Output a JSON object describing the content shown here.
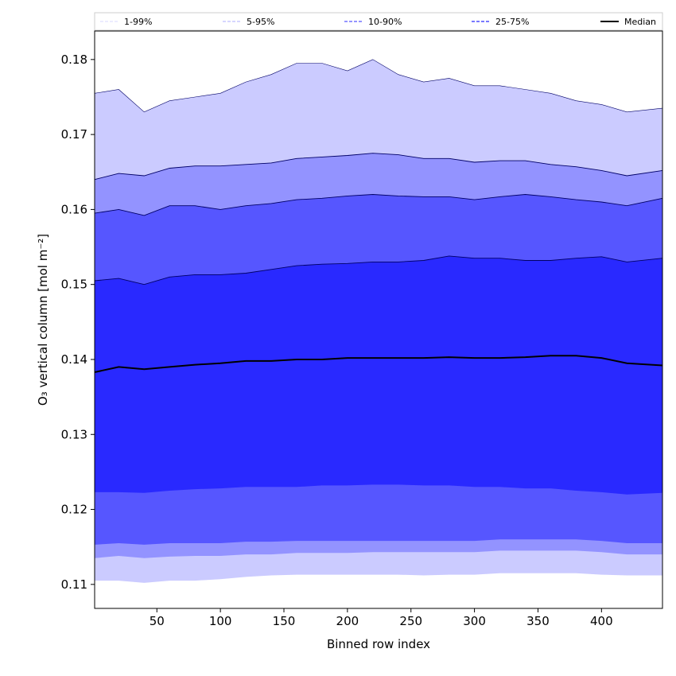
{
  "chart_data": {
    "type": "area",
    "xlabel": "Binned row index",
    "ylabel": "O₃ vertical column [mol m⁻²]",
    "xlim": [
      1,
      448
    ],
    "ylim": [
      0.1068,
      0.1838
    ],
    "xticks": [
      50,
      100,
      150,
      200,
      250,
      300,
      350,
      400
    ],
    "yticks": [
      0.11,
      0.12,
      0.13,
      0.14,
      0.15,
      0.16,
      0.17,
      0.18
    ],
    "ytick_labels": [
      "0.11",
      "0.12",
      "0.13",
      "0.14",
      "0.15",
      "0.16",
      "0.17",
      "0.18"
    ],
    "grid": false,
    "legend_position": "top",
    "x": [
      1,
      20,
      40,
      60,
      80,
      100,
      120,
      140,
      160,
      180,
      200,
      220,
      240,
      260,
      280,
      300,
      320,
      340,
      360,
      380,
      400,
      420,
      448
    ],
    "bands": [
      {
        "name": "1-99%",
        "color": "#cbcbff",
        "upper": [
          0.1755,
          0.176,
          0.173,
          0.1745,
          0.175,
          0.1755,
          0.177,
          0.178,
          0.1795,
          0.1795,
          0.1785,
          0.18,
          0.178,
          0.177,
          0.1775,
          0.1765,
          0.1765,
          0.176,
          0.1755,
          0.1745,
          0.174,
          0.173,
          0.1735
        ],
        "lower": [
          0.1105,
          0.1105,
          0.1102,
          0.1105,
          0.1105,
          0.1107,
          0.111,
          0.1112,
          0.1113,
          0.1113,
          0.1113,
          0.1113,
          0.1113,
          0.1112,
          0.1113,
          0.1113,
          0.1115,
          0.1115,
          0.1115,
          0.1115,
          0.1113,
          0.1112,
          0.1112
        ]
      },
      {
        "name": "5-95%",
        "color": "#9393ff",
        "upper": [
          0.164,
          0.1648,
          0.1645,
          0.1655,
          0.1658,
          0.1658,
          0.166,
          0.1662,
          0.1668,
          0.167,
          0.1672,
          0.1675,
          0.1673,
          0.1668,
          0.1668,
          0.1663,
          0.1665,
          0.1665,
          0.166,
          0.1657,
          0.1652,
          0.1645,
          0.1652
        ],
        "lower": [
          0.1135,
          0.1138,
          0.1135,
          0.1137,
          0.1138,
          0.1138,
          0.114,
          0.114,
          0.1142,
          0.1142,
          0.1142,
          0.1143,
          0.1143,
          0.1143,
          0.1143,
          0.1143,
          0.1145,
          0.1145,
          0.1145,
          0.1145,
          0.1143,
          0.114,
          0.114
        ]
      },
      {
        "name": "10-90%",
        "color": "#5656ff",
        "upper": [
          0.1595,
          0.16,
          0.1592,
          0.1605,
          0.1605,
          0.16,
          0.1605,
          0.1608,
          0.1613,
          0.1615,
          0.1618,
          0.162,
          0.1618,
          0.1617,
          0.1617,
          0.1613,
          0.1617,
          0.162,
          0.1617,
          0.1613,
          0.161,
          0.1605,
          0.1615
        ],
        "lower": [
          0.1153,
          0.1155,
          0.1153,
          0.1155,
          0.1155,
          0.1155,
          0.1157,
          0.1157,
          0.1158,
          0.1158,
          0.1158,
          0.1158,
          0.1158,
          0.1158,
          0.1158,
          0.1158,
          0.116,
          0.116,
          0.116,
          0.116,
          0.1158,
          0.1155,
          0.1155
        ]
      },
      {
        "name": "25-75%",
        "color": "#2929ff",
        "upper": [
          0.1505,
          0.1508,
          0.15,
          0.151,
          0.1513,
          0.1513,
          0.1515,
          0.152,
          0.1525,
          0.1527,
          0.1528,
          0.153,
          0.153,
          0.1532,
          0.1538,
          0.1535,
          0.1535,
          0.1532,
          0.1532,
          0.1535,
          0.1537,
          0.153,
          0.1535
        ],
        "lower": [
          0.1223,
          0.1223,
          0.1222,
          0.1225,
          0.1227,
          0.1228,
          0.123,
          0.123,
          0.123,
          0.1232,
          0.1232,
          0.1233,
          0.1233,
          0.1232,
          0.1232,
          0.123,
          0.123,
          0.1228,
          0.1228,
          0.1225,
          0.1223,
          0.122,
          0.1222
        ]
      }
    ],
    "series": [
      {
        "name": "Median",
        "color": "#000000",
        "values": [
          0.1383,
          0.139,
          0.1387,
          0.139,
          0.1393,
          0.1395,
          0.1398,
          0.1398,
          0.14,
          0.14,
          0.1402,
          0.1402,
          0.1402,
          0.1402,
          0.1403,
          0.1402,
          0.1402,
          0.1403,
          0.1405,
          0.1405,
          0.1402,
          0.1395,
          0.1392
        ]
      }
    ],
    "legend": [
      {
        "label": "1-99%",
        "color": "#cbcbff",
        "style": "dashed-thin"
      },
      {
        "label": "5-95%",
        "color": "#9393ff",
        "style": "dashed-thin"
      },
      {
        "label": "10-90%",
        "color": "#5656ff",
        "style": "dashed"
      },
      {
        "label": "25-75%",
        "color": "#2929ff",
        "style": "dashed"
      },
      {
        "label": "Median",
        "color": "#000000",
        "style": "solid"
      }
    ]
  }
}
